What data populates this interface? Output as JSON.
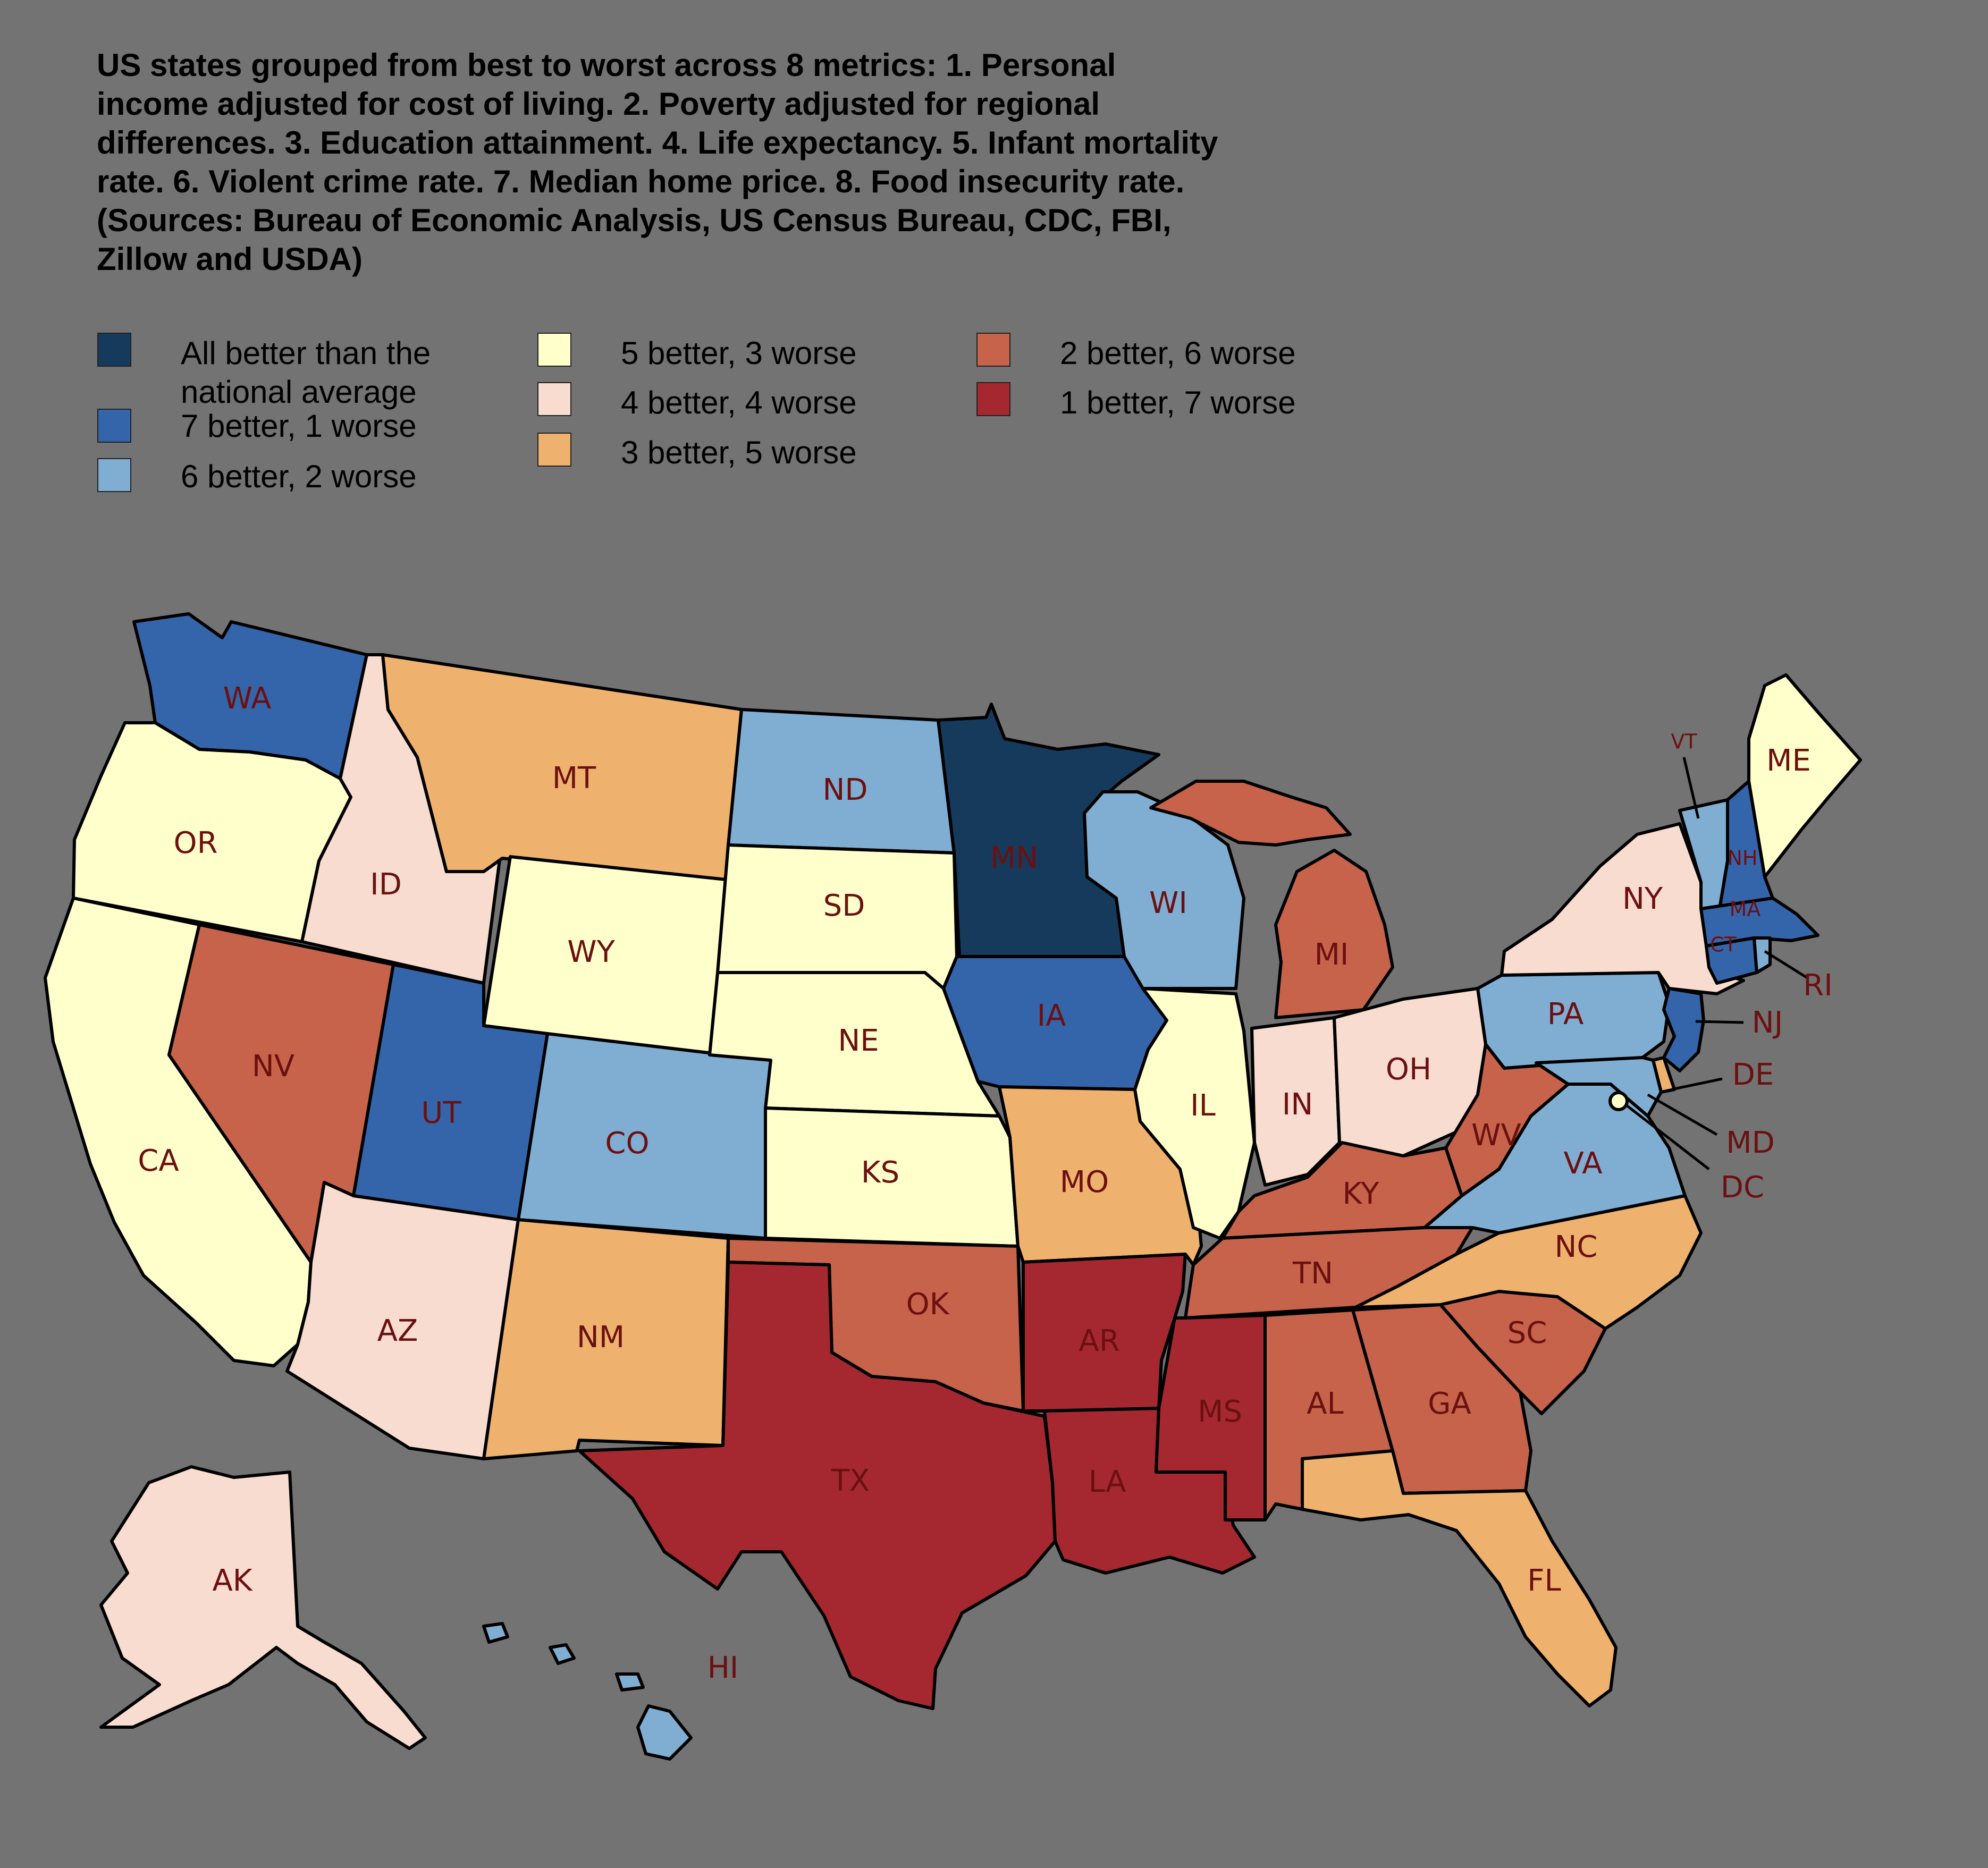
{
  "title_lines": [
    "US states grouped from best to worst across 8 metrics: 1. Personal",
    "income adjusted for cost of living. 2. Poverty adjusted for regional",
    "differences. 3. Education attainment. 4. Life expectancy. 5. Infant mortality",
    "rate. 6. Violent crime rate. 7. Median home price. 8. Food insecurity rate.",
    "(Sources: Bureau of Economic Analysis, US Census Bureau, CDC, FBI,",
    "Zillow and USDA)"
  ],
  "legend": [
    {
      "key": "g8",
      "lines": [
        "All better than the",
        "national average"
      ],
      "color": "#163a5c"
    },
    {
      "key": "g7",
      "lines": [
        "7 better, 1 worse"
      ],
      "color": "#3465ab"
    },
    {
      "key": "g6",
      "lines": [
        "6 better, 2 worse"
      ],
      "color": "#80aed3"
    },
    {
      "key": "g5",
      "lines": [
        "5 better, 3 worse"
      ],
      "color": "#ffffcc"
    },
    {
      "key": "g4",
      "lines": [
        "4 better, 4 worse"
      ],
      "color": "#f7dccf"
    },
    {
      "key": "g3",
      "lines": [
        "3 better, 5 worse"
      ],
      "color": "#efb26e"
    },
    {
      "key": "g2",
      "lines": [
        "2 better, 6 worse"
      ],
      "color": "#c7634a"
    },
    {
      "key": "g1",
      "lines": [
        "1 better, 7 worse"
      ],
      "color": "#a52830"
    }
  ],
  "states": {
    "WA": "g7",
    "OR": "g5",
    "CA": "g5",
    "ID": "g4",
    "NV": "g2",
    "AZ": "g4",
    "MT": "g3",
    "WY": "g5",
    "UT": "g7",
    "CO": "g6",
    "NM": "g3",
    "ND": "g6",
    "SD": "g5",
    "NE": "g5",
    "KS": "g5",
    "OK": "g2",
    "TX": "g1",
    "MN": "g8",
    "IA": "g7",
    "MO": "g3",
    "AR": "g1",
    "LA": "g1",
    "WI": "g6",
    "IL": "g5",
    "MI": "g2",
    "IN": "g4",
    "OH": "g4",
    "KY": "g2",
    "TN": "g2",
    "MS": "g1",
    "AL": "g2",
    "GA": "g2",
    "FL": "g3",
    "SC": "g2",
    "NC": "g3",
    "VA": "g6",
    "WV": "g2",
    "PA": "g6",
    "NY": "g4",
    "VT": "g6",
    "NH": "g7",
    "ME": "g5",
    "MA": "g7",
    "CT": "g7",
    "RI": "g6",
    "NJ": "g7",
    "DE": "g3",
    "MD": "g6",
    "DC": "g5",
    "AK": "g4",
    "HI": "g6"
  }
}
